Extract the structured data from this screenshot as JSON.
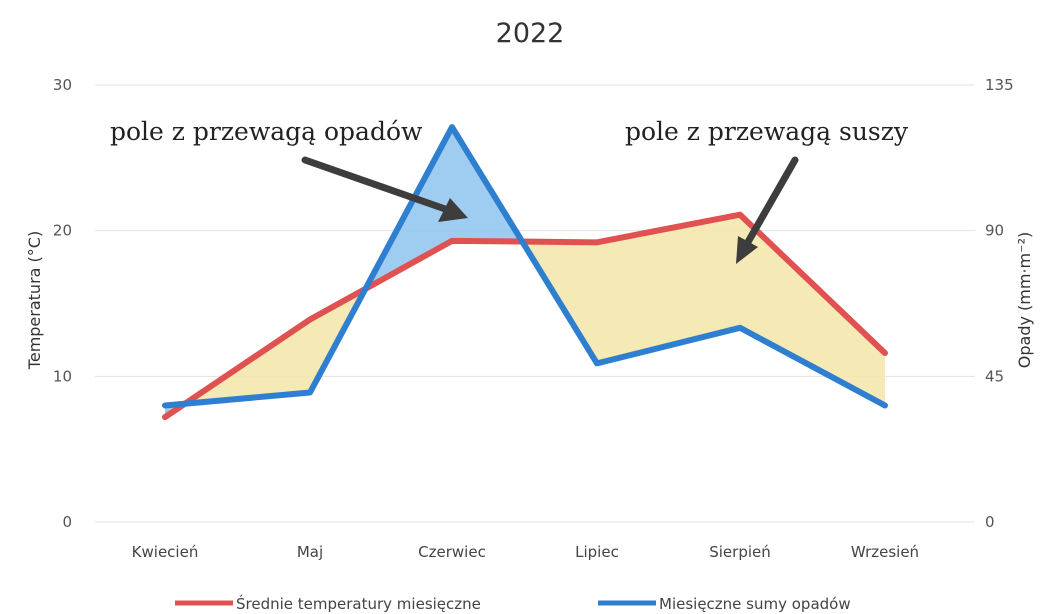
{
  "chart_data": {
    "type": "line",
    "title": "2022",
    "categories": [
      "Kwiecień",
      "Maj",
      "Czerwiec",
      "Lipiec",
      "Sierpień",
      "Wrzesień"
    ],
    "y_left": {
      "label": "Temperatura (°C)",
      "ticks": [
        "0",
        "10",
        "20",
        "30"
      ],
      "range": [
        0,
        30
      ]
    },
    "y_right": {
      "label": "Opady (mm·m⁻²)",
      "ticks": [
        "0",
        "45",
        "90",
        "135"
      ],
      "range": [
        0,
        135
      ]
    },
    "series": [
      {
        "name": "Średnie temperatury miesięczne",
        "axis": "left",
        "color": "#e05252",
        "values": [
          7.2,
          13.9,
          19.3,
          19.2,
          21.1,
          11.6
        ]
      },
      {
        "name": "Miesięczne sumy opadów",
        "axis": "right",
        "color": "#2f7fd1",
        "values": [
          36,
          40,
          122,
          49,
          60,
          36
        ]
      }
    ],
    "annotations": [
      {
        "text": "pole z przewagą opadów"
      },
      {
        "text": "pole z przewagą suszy"
      }
    ],
    "fill_colors": {
      "rain_surplus": "#8ec3ee",
      "drought": "#f3e5a8"
    },
    "grid": true,
    "legend": "bottom"
  }
}
